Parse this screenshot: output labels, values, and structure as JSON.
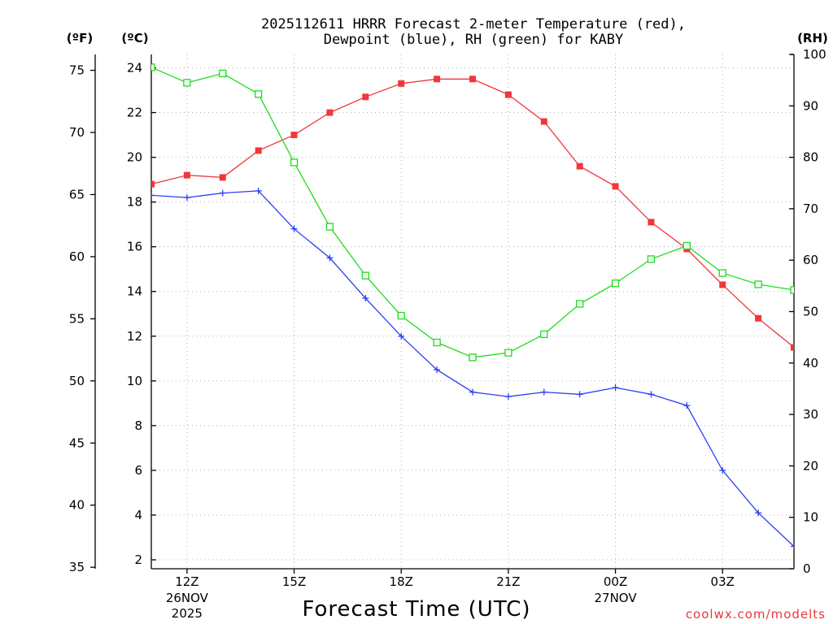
{
  "chart_data": {
    "type": "line",
    "title_line1": "2025112611 HRRR Forecast 2-meter Temperature (red),",
    "title_line2": "Dewpoint (blue), RH (green) for KABY",
    "xlabel": "Forecast Time (UTC)",
    "credit": "coolwx.com/modelts",
    "units": {
      "fahrenheit": "(ºF)",
      "celsius": "(ºC)",
      "rh": "(RH)"
    },
    "x_hours": [
      11,
      12,
      13,
      14,
      15,
      16,
      17,
      18,
      19,
      20,
      21,
      22,
      23,
      24,
      25,
      26,
      27,
      28,
      29
    ],
    "x_ticks": [
      {
        "hour": 12,
        "label": "12Z",
        "date": "26NOV",
        "year": "2025"
      },
      {
        "hour": 15,
        "label": "15Z",
        "date": "",
        "year": ""
      },
      {
        "hour": 18,
        "label": "18Z",
        "date": "",
        "year": ""
      },
      {
        "hour": 21,
        "label": "21Z",
        "date": "",
        "year": ""
      },
      {
        "hour": 24,
        "label": "00Z",
        "date": "27NOV",
        "year": ""
      },
      {
        "hour": 27,
        "label": "03Z",
        "date": "",
        "year": ""
      }
    ],
    "xlim": [
      11,
      29
    ],
    "celsius_ylim": [
      1.6,
      24.6
    ],
    "celsius_ticks": [
      2,
      4,
      6,
      8,
      10,
      12,
      14,
      16,
      18,
      20,
      22,
      24
    ],
    "fahrenheit_ticks": [
      35,
      40,
      45,
      50,
      55,
      60,
      65,
      70,
      75
    ],
    "rh_ylim": [
      0,
      100
    ],
    "rh_ticks": [
      0,
      10,
      20,
      30,
      40,
      50,
      60,
      70,
      80,
      90,
      100
    ],
    "series": [
      {
        "name": "2-meter Temperature",
        "axis": "celsius",
        "color": "#f0373a",
        "marker": "filled-square",
        "values": [
          18.8,
          19.2,
          19.1,
          20.3,
          21.0,
          22.0,
          22.7,
          23.3,
          23.5,
          23.5,
          22.8,
          21.6,
          19.6,
          18.7,
          17.1,
          15.9,
          14.3,
          12.8,
          11.5
        ]
      },
      {
        "name": "Dewpoint",
        "axis": "celsius",
        "color": "#2b3ff2",
        "marker": "plus",
        "values": [
          18.3,
          18.2,
          18.4,
          18.5,
          16.8,
          15.5,
          13.7,
          12.0,
          10.5,
          9.5,
          9.3,
          9.5,
          9.4,
          9.7,
          9.4,
          8.9,
          6.0,
          4.1,
          2.6
        ]
      },
      {
        "name": "RH",
        "axis": "rh",
        "color": "#1edc1e",
        "marker": "open-square",
        "values": [
          97.5,
          94.5,
          96.3,
          92.3,
          79.0,
          66.5,
          57.0,
          49.2,
          44.0,
          41.1,
          42.0,
          45.6,
          51.5,
          55.5,
          60.2,
          62.8,
          57.5,
          55.3,
          54.2
        ]
      }
    ]
  }
}
